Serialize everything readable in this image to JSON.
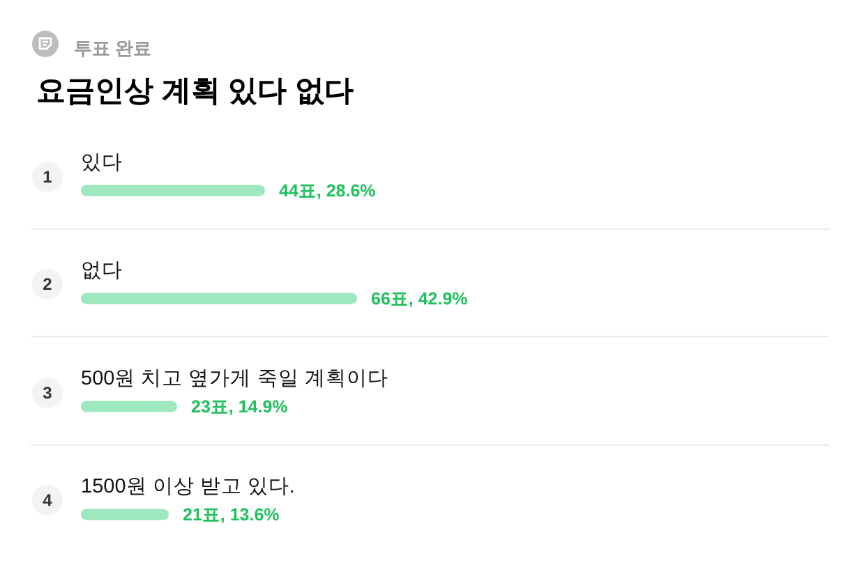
{
  "chart_data": {
    "type": "bar",
    "orientation": "horizontal",
    "title": "요금인상 계획 있다 없다",
    "subtitle": "투표 완료",
    "categories": [
      "있다",
      "없다",
      "500원 치고 옆가게 죽일 계획이다",
      "1500원 이상 받고 있다."
    ],
    "values": [
      44,
      66,
      23,
      21
    ],
    "color": "#9de8bf",
    "value_labels": [
      "44표, 28.6%",
      "66표, 42.9%",
      "23표, 14.9%",
      "21표, 13.6%"
    ],
    "tick_labels": "y",
    "grid": "y",
    "annotations": [
      "1",
      "2",
      "3",
      "4"
    ]
  }
}
